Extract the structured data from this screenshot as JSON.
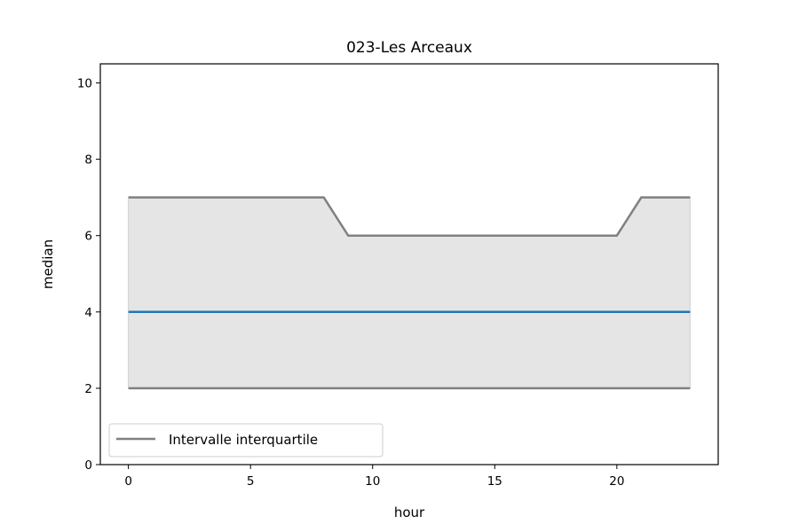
{
  "chart_data": {
    "type": "line",
    "title": "023-Les Arceaux",
    "xlabel": "hour",
    "ylabel": "median",
    "xlim": [
      -1.15,
      24.15
    ],
    "ylim": [
      0,
      10.5
    ],
    "xticks": [
      0,
      5,
      10,
      15,
      20
    ],
    "yticks": [
      0,
      2,
      4,
      6,
      8,
      10
    ],
    "grid": false,
    "legend_position": "lower-left",
    "x": [
      0,
      1,
      2,
      3,
      4,
      5,
      6,
      7,
      8,
      9,
      10,
      11,
      12,
      13,
      14,
      15,
      16,
      17,
      18,
      19,
      20,
      21,
      22,
      23
    ],
    "series": [
      {
        "role": "median",
        "color": "#1f77b4",
        "values": [
          4,
          4,
          4,
          4,
          4,
          4,
          4,
          4,
          4,
          4,
          4,
          4,
          4,
          4,
          4,
          4,
          4,
          4,
          4,
          4,
          4,
          4,
          4,
          4
        ]
      },
      {
        "role": "q3",
        "name": "Intervalle interquartile",
        "color": "#808080",
        "values": [
          7,
          7,
          7,
          7,
          7,
          7,
          7,
          7,
          7,
          6,
          6,
          6,
          6,
          6,
          6,
          6,
          6,
          6,
          6,
          6,
          6,
          7,
          7,
          7
        ]
      },
      {
        "role": "q1",
        "color": "#808080",
        "values": [
          2,
          2,
          2,
          2,
          2,
          2,
          2,
          2,
          2,
          2,
          2,
          2,
          2,
          2,
          2,
          2,
          2,
          2,
          2,
          2,
          2,
          2,
          2,
          2
        ]
      }
    ],
    "band_fill": "#e5e5e5",
    "legend": [
      {
        "label": "Intervalle interquartile",
        "color": "#808080"
      }
    ]
  }
}
